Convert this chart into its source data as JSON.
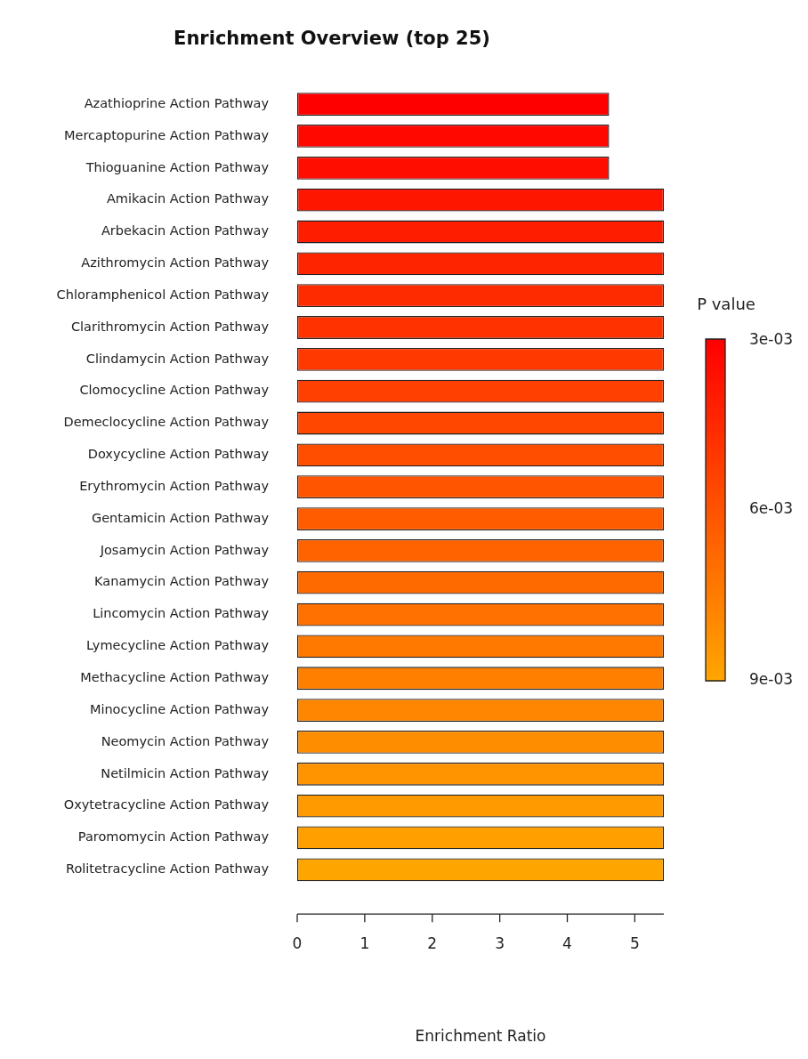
{
  "chart_data": {
    "type": "bar",
    "orientation": "horizontal",
    "title": "Enrichment Overview (top 25)",
    "xlabel": "Enrichment Ratio",
    "clabel": "P value",
    "categories": [
      "Azathioprine Action Pathway",
      "Mercaptopurine Action Pathway",
      "Thioguanine Action Pathway",
      "Amikacin Action Pathway",
      "Arbekacin Action Pathway",
      "Azithromycin Action Pathway",
      "Chloramphenicol Action Pathway",
      "Clarithromycin Action Pathway",
      "Clindamycin Action Pathway",
      "Clomocycline Action Pathway",
      "Demeclocycline Action Pathway",
      "Doxycycline Action Pathway",
      "Erythromycin Action Pathway",
      "Gentamicin Action Pathway",
      "Josamycin Action Pathway",
      "Kanamycin Action Pathway",
      "Lincomycin Action Pathway",
      "Lymecycline Action Pathway",
      "Methacycline Action Pathway",
      "Minocycline Action Pathway",
      "Neomycin Action Pathway",
      "Netilmicin Action Pathway",
      "Oxytetracycline Action Pathway",
      "Paromomycin Action Pathway",
      "Rolitetracycline Action Pathway"
    ],
    "values": [
      4.62,
      4.62,
      4.62,
      5.43,
      5.43,
      5.43,
      5.43,
      5.43,
      5.43,
      5.43,
      5.43,
      5.43,
      5.43,
      5.43,
      5.43,
      5.43,
      5.43,
      5.43,
      5.43,
      5.43,
      5.43,
      5.43,
      5.43,
      5.43,
      5.43
    ],
    "colors": [
      "#ff0000",
      "#ff0800",
      "#ff0e00",
      "#ff1600",
      "#ff1d00",
      "#ff2400",
      "#ff2b00",
      "#ff3200",
      "#ff3900",
      "#ff4000",
      "#ff4700",
      "#ff4e00",
      "#ff5500",
      "#ff5c00",
      "#ff6300",
      "#ff6a00",
      "#ff7100",
      "#ff7800",
      "#ff7f00",
      "#ff8600",
      "#ff8d00",
      "#ff9400",
      "#ff9b00",
      "#ffa000",
      "#ffa500"
    ],
    "xlim": [
      0,
      5.43
    ],
    "xticks": [
      0,
      1,
      2,
      3,
      4,
      5
    ],
    "clim": [
      0.009,
      0.003
    ],
    "cticks": [
      {
        "value": 0.003,
        "label": "3e-03"
      },
      {
        "value": 0.006,
        "label": "6e-03"
      },
      {
        "value": 0.009,
        "label": "9e-03"
      }
    ],
    "grid": false,
    "legend": false
  }
}
